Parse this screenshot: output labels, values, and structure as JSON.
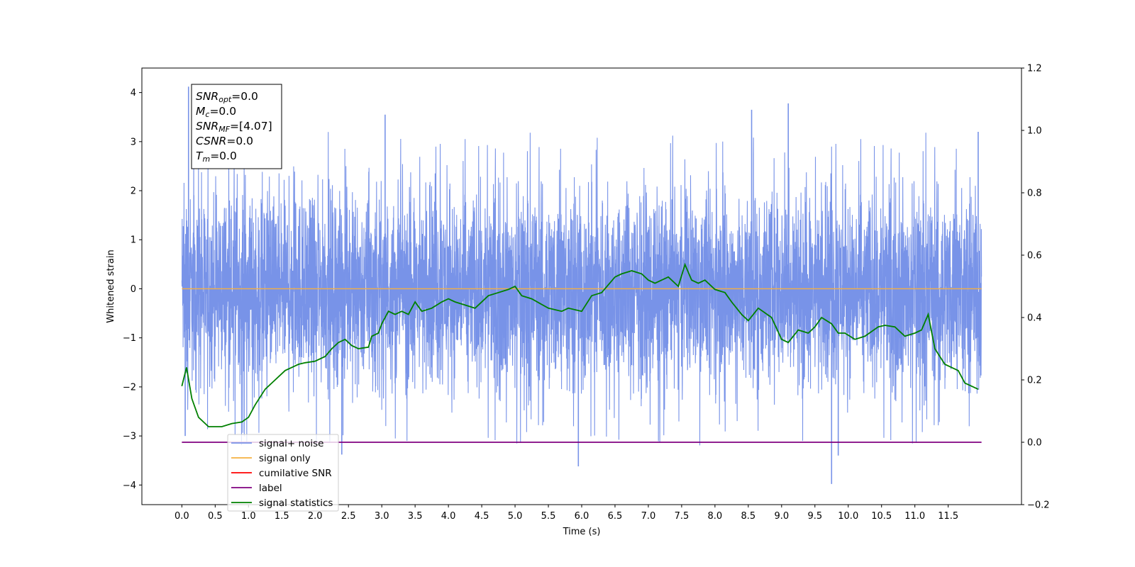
{
  "chart_data": {
    "type": "line",
    "xlabel": "Time (s)",
    "ylabel": "Whitened strain",
    "xlim": [
      -0.6,
      12.6
    ],
    "ylim": [
      -4.4,
      4.5
    ],
    "y2lim": [
      -0.2,
      1.2
    ],
    "x_ticks": [
      0.0,
      0.5,
      1.0,
      1.5,
      2.0,
      2.5,
      3.0,
      3.5,
      4.0,
      4.5,
      5.0,
      5.5,
      6.0,
      6.5,
      7.0,
      7.5,
      8.0,
      8.5,
      9.0,
      9.5,
      10.0,
      10.5,
      11.0,
      11.5
    ],
    "x_tick_labels": [
      "0.0",
      "0.5",
      "1.0",
      "1.5",
      "2.0",
      "2.5",
      "3.0",
      "3.5",
      "4.0",
      "4.5",
      "5.0",
      "5.5",
      "6.0",
      "6.5",
      "7.0",
      "7.5",
      "8.0",
      "8.5",
      "9.0",
      "9.5",
      "10.0",
      "10.5",
      "11.0",
      "11.5"
    ],
    "y_ticks": [
      -4,
      -3,
      -2,
      -1,
      0,
      1,
      2,
      3,
      4
    ],
    "y_tick_labels": [
      "−4",
      "−3",
      "−2",
      "−1",
      "0",
      "1",
      "2",
      "3",
      "4"
    ],
    "y2_ticks": [
      -0.2,
      0.0,
      0.2,
      0.4,
      0.6,
      0.8,
      1.0,
      1.2
    ],
    "y2_tick_labels": [
      "−0.2",
      "0.0",
      "0.2",
      "0.4",
      "0.6",
      "0.8",
      "1.0",
      "1.2"
    ],
    "grid": false,
    "legend_position": "lower-left",
    "annotation": [
      {
        "base": "SNR",
        "sub": "opt",
        "value": "=0.0"
      },
      {
        "base": "M",
        "sub": "c",
        "value": "=0.0"
      },
      {
        "base": "SNR",
        "sub": "MF",
        "value": "=[4.07]"
      },
      {
        "base": "CSNR",
        "sub": "",
        "value": "=0.0"
      },
      {
        "base": "T",
        "sub": "m",
        "value": "=0.0"
      }
    ],
    "series": [
      {
        "name": "signal+ noise",
        "color": "#7893e8",
        "axis": "left",
        "description_values": {
          "x_range": [
            0.0,
            12.0
          ],
          "typical_band": [
            -2.0,
            2.0
          ],
          "notable_peaks": [
            [
              0.1,
              4.12
            ],
            [
              0.05,
              -3.0
            ],
            [
              3.05,
              3.55
            ],
            [
              9.1,
              3.78
            ],
            [
              8.55,
              3.65
            ],
            [
              5.95,
              -3.62
            ],
            [
              9.75,
              -3.98
            ],
            [
              9.85,
              -3.4
            ],
            [
              2.4,
              -3.38
            ],
            [
              11.95,
              3.2
            ]
          ]
        }
      },
      {
        "name": "signal only",
        "color": "#f5b041",
        "axis": "left",
        "x": [
          0.0,
          12.0
        ],
        "values": [
          0.0,
          0.0
        ]
      },
      {
        "name": "cumilative SNR",
        "color": "#ff0000",
        "axis": "left",
        "x": [],
        "values": []
      },
      {
        "name": "label",
        "color": "#800080",
        "axis": "right",
        "x": [
          0.0,
          12.0
        ],
        "values": [
          0.0,
          0.0
        ]
      },
      {
        "name": "signal statistics",
        "color": "#008000",
        "axis": "right",
        "x": [
          0.0,
          0.07,
          0.15,
          0.25,
          0.4,
          0.5,
          0.6,
          0.75,
          0.9,
          1.0,
          1.1,
          1.25,
          1.4,
          1.55,
          1.65,
          1.75,
          1.85,
          2.0,
          2.15,
          2.25,
          2.35,
          2.45,
          2.55,
          2.65,
          2.8,
          2.85,
          2.95,
          3.0,
          3.1,
          3.2,
          3.3,
          3.4,
          3.5,
          3.6,
          3.75,
          3.9,
          4.0,
          4.1,
          4.25,
          4.4,
          4.6,
          4.75,
          4.9,
          5.0,
          5.1,
          5.25,
          5.5,
          5.7,
          5.8,
          6.0,
          6.15,
          6.3,
          6.5,
          6.6,
          6.75,
          6.9,
          7.0,
          7.1,
          7.2,
          7.3,
          7.45,
          7.55,
          7.65,
          7.75,
          7.85,
          8.0,
          8.15,
          8.25,
          8.4,
          8.5,
          8.65,
          8.85,
          9.0,
          9.1,
          9.25,
          9.4,
          9.5,
          9.6,
          9.75,
          9.85,
          9.95,
          10.1,
          10.25,
          10.45,
          10.55,
          10.7,
          10.85,
          11.0,
          11.1,
          11.2,
          11.3,
          11.45,
          11.55,
          11.65,
          11.75,
          11.85,
          11.95
        ],
        "values": [
          0.18,
          0.24,
          0.14,
          0.08,
          0.05,
          0.05,
          0.05,
          0.06,
          0.065,
          0.08,
          0.12,
          0.17,
          0.2,
          0.23,
          0.24,
          0.25,
          0.255,
          0.26,
          0.275,
          0.3,
          0.32,
          0.33,
          0.31,
          0.3,
          0.305,
          0.34,
          0.35,
          0.38,
          0.42,
          0.41,
          0.42,
          0.41,
          0.45,
          0.42,
          0.43,
          0.45,
          0.46,
          0.45,
          0.44,
          0.43,
          0.47,
          0.48,
          0.49,
          0.5,
          0.47,
          0.46,
          0.43,
          0.42,
          0.43,
          0.42,
          0.47,
          0.48,
          0.53,
          0.54,
          0.55,
          0.54,
          0.52,
          0.51,
          0.52,
          0.53,
          0.5,
          0.57,
          0.52,
          0.51,
          0.52,
          0.49,
          0.48,
          0.45,
          0.41,
          0.39,
          0.43,
          0.4,
          0.33,
          0.32,
          0.36,
          0.35,
          0.37,
          0.4,
          0.38,
          0.35,
          0.35,
          0.33,
          0.34,
          0.37,
          0.375,
          0.37,
          0.34,
          0.35,
          0.36,
          0.41,
          0.3,
          0.25,
          0.24,
          0.23,
          0.19,
          0.18,
          0.17
        ]
      }
    ]
  }
}
